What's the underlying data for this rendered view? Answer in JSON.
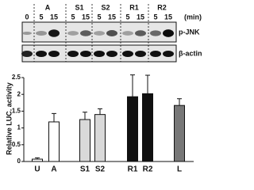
{
  "blot": {
    "control_time": "0",
    "unit": "(min)",
    "groups": [
      {
        "label": "A",
        "times": [
          "5",
          "15"
        ]
      },
      {
        "label": "S1",
        "times": [
          "5",
          "15"
        ]
      },
      {
        "label": "S2",
        "times": [
          "5",
          "15"
        ]
      },
      {
        "label": "R1",
        "times": [
          "5",
          "15"
        ]
      },
      {
        "label": "R2",
        "times": [
          "5",
          "15"
        ]
      }
    ],
    "rows": [
      "p-JNK",
      "β-actin"
    ]
  },
  "chart_data": {
    "type": "bar",
    "y_label": "Relative LUC. activity",
    "categories": [
      "U",
      "A",
      "S1",
      "S2",
      "R1",
      "R2",
      "L"
    ],
    "values": [
      0.07,
      1.18,
      1.25,
      1.4,
      1.93,
      2.02,
      1.67
    ],
    "errors": [
      0.04,
      0.25,
      0.22,
      0.17,
      0.65,
      0.55,
      0.2
    ],
    "colors": [
      "#ffffff",
      "#ffffff",
      "#d9d9d9",
      "#d9d9d9",
      "#111111",
      "#111111",
      "#777777"
    ],
    "ylim": [
      0,
      2.5
    ],
    "yticks": [
      0,
      0.5,
      1,
      1.5,
      2,
      2.5
    ]
  }
}
